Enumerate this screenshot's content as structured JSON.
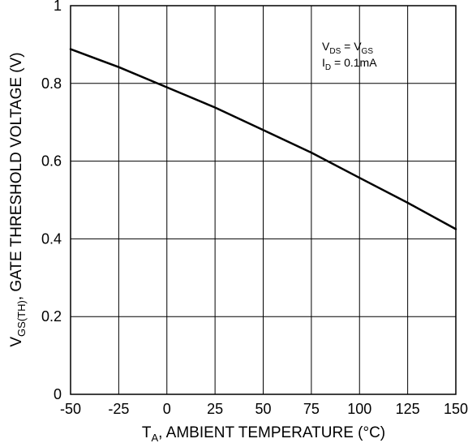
{
  "chart_data": {
    "type": "line",
    "x_ticks": [
      "-50",
      "-25",
      "0",
      "25",
      "50",
      "75",
      "100",
      "125",
      "150"
    ],
    "y_ticks": [
      "0",
      "0.2",
      "0.4",
      "0.6",
      "0.8",
      "1"
    ],
    "xlim": [
      -50,
      150
    ],
    "ylim": [
      0,
      1
    ],
    "grid": true,
    "xlabel": {
      "main": "T",
      "sub": "A",
      "rest": ", AMBIENT TEMPERATURE (°C)"
    },
    "ylabel": {
      "main": "V",
      "sub": "GS(TH)",
      "rest": ", GATE THRESHOLD VOLTAGE (V)"
    },
    "annotation": {
      "line1": {
        "a": "V",
        "a_sub": "DS",
        "mid": " = V",
        "b_sub": "GS"
      },
      "line2": {
        "a": "I",
        "a_sub": "D",
        "rest": " = 0.1mA"
      }
    },
    "series": [
      {
        "x": [
          -50,
          -25,
          0,
          25,
          50,
          75,
          100,
          125,
          150
        ],
        "y": [
          0.888,
          0.842,
          0.79,
          0.738,
          0.68,
          0.622,
          0.557,
          0.493,
          0.425
        ]
      }
    ],
    "line_color": "#000000"
  }
}
